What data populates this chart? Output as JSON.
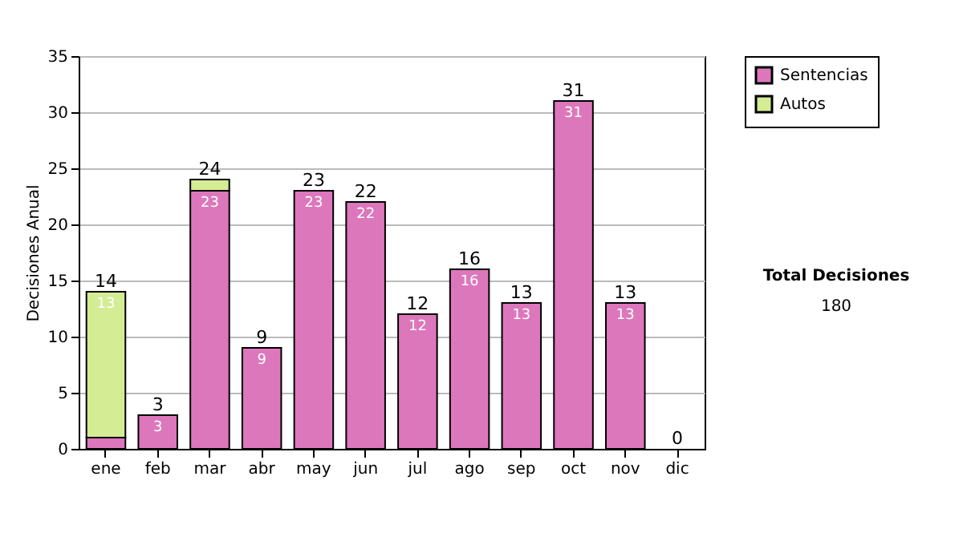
{
  "chart_data": {
    "type": "bar",
    "stacked": true,
    "ylabel": "Decisiones Anual",
    "categories": [
      "ene",
      "feb",
      "mar",
      "abr",
      "may",
      "jun",
      "jul",
      "ago",
      "sep",
      "oct",
      "nov",
      "dic"
    ],
    "series": [
      {
        "name": "Sentencias",
        "color": "#dd77bb",
        "values": [
          1,
          3,
          23,
          9,
          23,
          22,
          12,
          16,
          13,
          31,
          13,
          0
        ],
        "value_labels": [
          null,
          "3",
          "23",
          "9",
          "23",
          "22",
          "12",
          "16",
          "13",
          "31",
          "13",
          null
        ]
      },
      {
        "name": "Autos",
        "color": "#d4ec94",
        "values": [
          13,
          0,
          1,
          0,
          0,
          0,
          0,
          0,
          0,
          0,
          0,
          0
        ],
        "value_labels": [
          "13",
          null,
          null,
          null,
          null,
          null,
          null,
          null,
          null,
          null,
          null,
          null
        ]
      }
    ],
    "totals": [
      "14",
      "3",
      "24",
      "9",
      "23",
      "22",
      "12",
      "16",
      "13",
      "31",
      "13",
      "0"
    ],
    "ylim": [
      0,
      35
    ],
    "yticks": [
      0,
      5,
      10,
      15,
      20,
      25,
      30,
      35
    ],
    "grid": "y",
    "legend": "right",
    "annotations": [
      "Total Decisiones",
      "180"
    ]
  }
}
